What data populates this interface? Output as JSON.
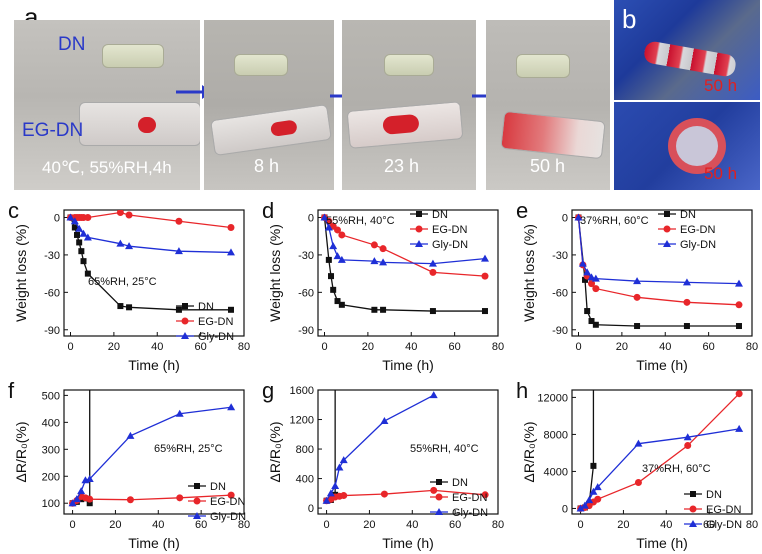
{
  "panel_letters": {
    "a": "a",
    "b": "b",
    "c": "c",
    "d": "d",
    "e": "e",
    "f": "f",
    "g": "g",
    "h": "h"
  },
  "photos": {
    "a_dn_label": "DN",
    "a_egdn_label": "EG-DN",
    "a_caption_1": "40℃, 55%RH,4h",
    "a_caption_2": "8 h",
    "a_caption_3": "23 h",
    "a_caption_4": "50 h",
    "b_caption_top": "50 h",
    "b_caption_bottom": "50 h",
    "colors": {
      "label_blue": "#2a39c8",
      "caption_white": "#ffffff",
      "caption_red": "#e02020",
      "sample_red": "#d4202a"
    }
  },
  "chart_data": [
    {
      "id": "c",
      "type": "line",
      "xlabel": "Time (h)",
      "ylabel": "Weight loss (%)",
      "xlim": [
        -3,
        80
      ],
      "ylim": [
        -95,
        6
      ],
      "xticks": [
        0,
        20,
        40,
        60,
        80
      ],
      "yticks": [
        0,
        -30,
        -60,
        -90
      ],
      "xtick_labels": [
        "0",
        "20",
        "40",
        "60",
        "80"
      ],
      "ytick_labels": [
        "0",
        "-30",
        "-60",
        "-90"
      ],
      "annotation": "65%RH, 25°C",
      "series": [
        {
          "name": "DN",
          "color": "#111111",
          "marker": "square",
          "x": [
            0,
            2,
            3,
            4,
            5,
            6,
            8,
            23,
            27,
            50,
            74
          ],
          "y": [
            0,
            -8,
            -14,
            -20,
            -27,
            -35,
            -45,
            -71,
            -72,
            -74,
            -74
          ]
        },
        {
          "name": "EG-DN",
          "color": "#e8262a",
          "marker": "circle",
          "x": [
            0,
            2,
            3,
            4,
            5,
            6,
            8,
            23,
            27,
            50,
            74
          ],
          "y": [
            0,
            0,
            0,
            0,
            0,
            0,
            0,
            4,
            2,
            -3,
            -8
          ]
        },
        {
          "name": "Gly-DN",
          "color": "#1f2fd6",
          "marker": "triangle",
          "x": [
            0,
            2,
            4,
            6,
            8,
            23,
            27,
            50,
            74
          ],
          "y": [
            0,
            -3,
            -9,
            -13,
            -16,
            -21,
            -23,
            -27,
            -28
          ]
        }
      ]
    },
    {
      "id": "d",
      "type": "line",
      "xlabel": "Time (h)",
      "ylabel": "Weight loss (%)",
      "xlim": [
        -3,
        80
      ],
      "ylim": [
        -95,
        6
      ],
      "xticks": [
        0,
        20,
        40,
        60,
        80
      ],
      "yticks": [
        0,
        -30,
        -60,
        -90
      ],
      "xtick_labels": [
        "0",
        "20",
        "40",
        "60",
        "80"
      ],
      "ytick_labels": [
        "0",
        "-30",
        "-60",
        "-90"
      ],
      "annotation": "55%RH, 40°C",
      "series": [
        {
          "name": "DN",
          "color": "#111111",
          "marker": "square",
          "x": [
            0,
            2,
            3,
            4,
            6,
            8,
            23,
            27,
            50,
            74
          ],
          "y": [
            0,
            -34,
            -47,
            -58,
            -67,
            -70,
            -74,
            -74,
            -75,
            -75
          ]
        },
        {
          "name": "EG-DN",
          "color": "#e8262a",
          "marker": "circle",
          "x": [
            0,
            2,
            4,
            6,
            8,
            23,
            27,
            50,
            74
          ],
          "y": [
            0,
            -3,
            -7,
            -10,
            -14,
            -22,
            -25,
            -44,
            -47
          ]
        },
        {
          "name": "Gly-DN",
          "color": "#1f2fd6",
          "marker": "triangle",
          "x": [
            0,
            2,
            4,
            6,
            8,
            23,
            27,
            50,
            74
          ],
          "y": [
            0,
            -8,
            -23,
            -31,
            -34,
            -35,
            -36,
            -37,
            -33
          ]
        }
      ]
    },
    {
      "id": "e",
      "type": "line",
      "xlabel": "Time (h)",
      "ylabel": "Weight loss (%)",
      "xlim": [
        -3,
        80
      ],
      "ylim": [
        -95,
        6
      ],
      "xticks": [
        0,
        20,
        40,
        60,
        80
      ],
      "yticks": [
        0,
        -30,
        -60,
        -90
      ],
      "xtick_labels": [
        "0",
        "20",
        "40",
        "60",
        "80"
      ],
      "ytick_labels": [
        "0",
        "-30",
        "-60",
        "-90"
      ],
      "annotation": "37%RH, 60°C",
      "series": [
        {
          "name": "DN",
          "color": "#111111",
          "marker": "square",
          "x": [
            0,
            3,
            4,
            6,
            8,
            27,
            50,
            74
          ],
          "y": [
            0,
            -50,
            -75,
            -83,
            -86,
            -87,
            -87,
            -87
          ]
        },
        {
          "name": "EG-DN",
          "color": "#e8262a",
          "marker": "circle",
          "x": [
            0,
            2,
            4,
            6,
            8,
            27,
            50,
            74
          ],
          "y": [
            0,
            -38,
            -47,
            -53,
            -57,
            -64,
            -68,
            -70
          ]
        },
        {
          "name": "Gly-DN",
          "color": "#1f2fd6",
          "marker": "triangle",
          "x": [
            0,
            2,
            4,
            6,
            8,
            27,
            50,
            74
          ],
          "y": [
            0,
            -37,
            -44,
            -48,
            -49,
            -51,
            -52,
            -53
          ]
        }
      ]
    },
    {
      "id": "f",
      "type": "line",
      "xlabel": "Time (h)",
      "ylabel": "ΔR/R₀(%)",
      "xlim": [
        -4,
        80
      ],
      "ylim": [
        60,
        520
      ],
      "xticks": [
        0,
        20,
        40,
        60,
        80
      ],
      "yticks": [
        100,
        200,
        300,
        400,
        500
      ],
      "xtick_labels": [
        "0",
        "20",
        "40",
        "60",
        "80"
      ],
      "ytick_labels": [
        "100",
        "200",
        "300",
        "400",
        "500"
      ],
      "annotation": "65%RH, 25°C",
      "series": [
        {
          "name": "DN",
          "color": "#111111",
          "marker": "square",
          "x": [
            0,
            2,
            4,
            6,
            8,
            8
          ],
          "y": [
            100,
            105,
            115,
            118,
            100,
            520
          ]
        },
        {
          "name": "EG-DN",
          "color": "#e8262a",
          "marker": "circle",
          "x": [
            0,
            2,
            4,
            6,
            8,
            27,
            50,
            74
          ],
          "y": [
            100,
            110,
            125,
            120,
            115,
            113,
            120,
            130
          ]
        },
        {
          "name": "Gly-DN",
          "color": "#1f2fd6",
          "marker": "triangle",
          "x": [
            0,
            2,
            4,
            6,
            8,
            27,
            50,
            74
          ],
          "y": [
            100,
            115,
            145,
            185,
            190,
            350,
            432,
            456
          ]
        }
      ]
    },
    {
      "id": "g",
      "type": "line",
      "xlabel": "Time (h)",
      "ylabel": "ΔR/R₀(%)",
      "xlim": [
        -4,
        80
      ],
      "ylim": [
        -80,
        1600
      ],
      "xticks": [
        0,
        20,
        40,
        60,
        80
      ],
      "yticks": [
        0,
        400,
        800,
        1200,
        1600
      ],
      "xtick_labels": [
        "0",
        "20",
        "40",
        "60",
        "80"
      ],
      "ytick_labels": [
        "0",
        "400",
        "800",
        "1200",
        "1600"
      ],
      "annotation": "55%RH, 40°C",
      "series": [
        {
          "name": "DN",
          "color": "#111111",
          "marker": "square",
          "x": [
            0,
            2,
            3,
            4,
            4
          ],
          "y": [
            100,
            110,
            150,
            180,
            1600
          ]
        },
        {
          "name": "EG-DN",
          "color": "#e8262a",
          "marker": "circle",
          "x": [
            0,
            2,
            4,
            6,
            8,
            27,
            50,
            74
          ],
          "y": [
            100,
            120,
            150,
            160,
            170,
            190,
            240,
            180
          ]
        },
        {
          "name": "Gly-DN",
          "color": "#1f2fd6",
          "marker": "triangle",
          "x": [
            0,
            2,
            4,
            6,
            8,
            27,
            50
          ],
          "y": [
            100,
            200,
            300,
            550,
            650,
            1180,
            1530
          ]
        }
      ]
    },
    {
      "id": "h",
      "type": "line",
      "xlabel": "Time (h)",
      "ylabel": "ΔR/R₀(%)",
      "xlim": [
        -4,
        80
      ],
      "ylim": [
        -600,
        12800
      ],
      "xticks": [
        0,
        20,
        40,
        60,
        80
      ],
      "yticks": [
        0,
        4000,
        8000,
        12000
      ],
      "xtick_labels": [
        "0",
        "20",
        "40",
        "60",
        "80"
      ],
      "ytick_labels": [
        "0",
        "4000",
        "8000",
        "12000"
      ],
      "annotation": "37%RH, 60°C",
      "series": [
        {
          "name": "DN",
          "color": "#111111",
          "marker": "square",
          "x": [
            0,
            2,
            4,
            6,
            6
          ],
          "y": [
            0,
            100,
            500,
            4600,
            12800
          ]
        },
        {
          "name": "EG-DN",
          "color": "#e8262a",
          "marker": "circle",
          "x": [
            0,
            2,
            4,
            6,
            8,
            27,
            50,
            74
          ],
          "y": [
            0,
            100,
            300,
            700,
            1000,
            2800,
            6800,
            12400
          ]
        },
        {
          "name": "Gly-DN",
          "color": "#1f2fd6",
          "marker": "triangle",
          "x": [
            0,
            2,
            4,
            6,
            8,
            27,
            50,
            74
          ],
          "y": [
            0,
            300,
            900,
            1800,
            2300,
            7000,
            7700,
            8600
          ]
        }
      ]
    }
  ]
}
